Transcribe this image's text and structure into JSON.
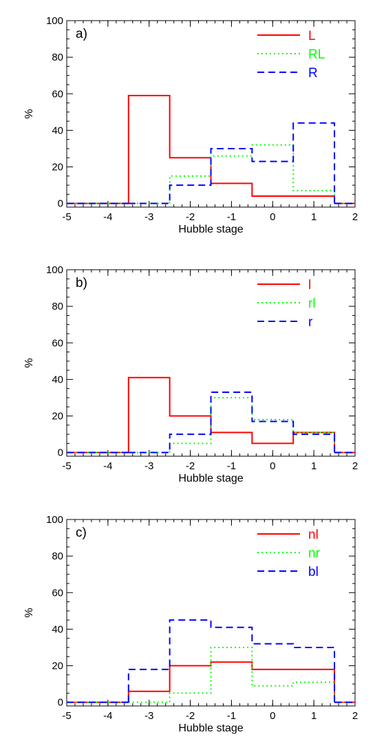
{
  "chart_data": [
    {
      "type": "line",
      "panel_label": "a)",
      "xlabel": "Hubble stage",
      "ylabel": "%",
      "xlim": [
        -5,
        2
      ],
      "ylim": [
        -2,
        100
      ],
      "xticks": [
        "-5",
        "-4",
        "-3",
        "-2",
        "-1",
        "0",
        "1",
        "2"
      ],
      "yticks": [
        "0",
        "20",
        "40",
        "60",
        "80",
        "100"
      ],
      "legend_position": "top-right",
      "bins": [
        -3,
        -2,
        -1,
        0,
        1
      ],
      "series": [
        {
          "name": "L",
          "color": "#ff0000",
          "dash": "solid",
          "values": [
            59,
            25,
            11,
            4,
            4
          ]
        },
        {
          "name": "RL",
          "color": "#00ff00",
          "dash": "dotted",
          "values": [
            0,
            15,
            26,
            32,
            7
          ]
        },
        {
          "name": "R",
          "color": "#0000ff",
          "dash": "dashed",
          "values": [
            0,
            10,
            30,
            23,
            44
          ]
        }
      ]
    },
    {
      "type": "line",
      "panel_label": "b)",
      "xlabel": "Hubble stage",
      "ylabel": "%",
      "xlim": [
        -5,
        2
      ],
      "ylim": [
        -2,
        100
      ],
      "xticks": [
        "-5",
        "-4",
        "-3",
        "-2",
        "-1",
        "0",
        "1",
        "2"
      ],
      "yticks": [
        "0",
        "20",
        "40",
        "60",
        "80",
        "100"
      ],
      "legend_position": "top-right",
      "bins": [
        -3,
        -2,
        -1,
        0,
        1
      ],
      "series": [
        {
          "name": "l",
          "color": "#ff0000",
          "dash": "solid",
          "values": [
            41,
            20,
            11,
            5,
            11
          ]
        },
        {
          "name": "rl",
          "color": "#00ff00",
          "dash": "dotted",
          "values": [
            0,
            5,
            30,
            18,
            11
          ]
        },
        {
          "name": "r",
          "color": "#0000ff",
          "dash": "dashed",
          "values": [
            0,
            10,
            33,
            17,
            10
          ]
        }
      ]
    },
    {
      "type": "line",
      "panel_label": "c)",
      "xlabel": "Hubble stage",
      "ylabel": "%",
      "xlim": [
        -5,
        2
      ],
      "ylim": [
        -2,
        100
      ],
      "xticks": [
        "-5",
        "-4",
        "-3",
        "-2",
        "-1",
        "0",
        "1",
        "2"
      ],
      "yticks": [
        "0",
        "20",
        "40",
        "60",
        "80",
        "100"
      ],
      "legend_position": "top-right",
      "bins": [
        -3,
        -2,
        -1,
        0,
        1
      ],
      "series": [
        {
          "name": "nl",
          "color": "#ff0000",
          "dash": "solid",
          "values": [
            6,
            20,
            22,
            18,
            18
          ]
        },
        {
          "name": "nr",
          "color": "#00ff00",
          "dash": "dotted",
          "values": [
            0,
            5,
            30,
            9,
            11
          ]
        },
        {
          "name": "bl",
          "color": "#0000ff",
          "dash": "dashed",
          "values": [
            18,
            45,
            41,
            32,
            30
          ]
        }
      ]
    }
  ]
}
